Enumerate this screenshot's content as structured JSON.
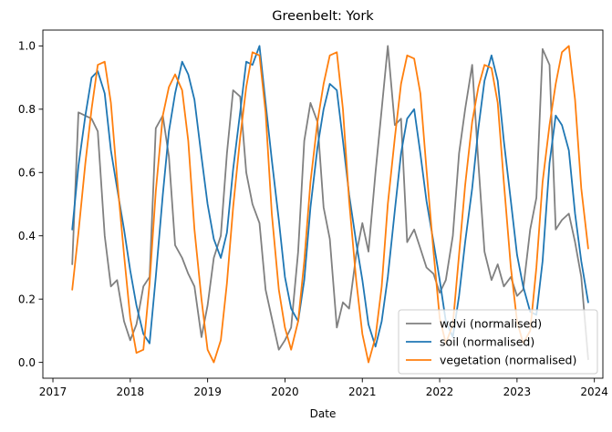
{
  "chart_data": {
    "type": "line",
    "title": "Greenbelt: York",
    "xlabel": "Date",
    "ylabel": "",
    "xlim": [
      2016.87,
      2024.11
    ],
    "ylim": [
      -0.05,
      1.05
    ],
    "xticks": [
      2017,
      2018,
      2019,
      2020,
      2021,
      2022,
      2023,
      2024
    ],
    "xtick_labels": [
      "2017",
      "2018",
      "2019",
      "2020",
      "2021",
      "2022",
      "2023",
      "2024"
    ],
    "yticks": [
      0.0,
      0.2,
      0.4,
      0.6,
      0.8,
      1.0
    ],
    "ytick_labels": [
      "0.0",
      "0.2",
      "0.4",
      "0.6",
      "0.8",
      "1.0"
    ],
    "grid": false,
    "legend_position": "lower-right",
    "series": [
      {
        "name": "wdvi (normalised)",
        "color": "#808080",
        "points": [
          [
            2017.25,
            0.31
          ],
          [
            2017.33,
            0.79
          ],
          [
            2017.5,
            0.77
          ],
          [
            2017.58,
            0.73
          ],
          [
            2017.67,
            0.4
          ],
          [
            2017.75,
            0.24
          ],
          [
            2017.83,
            0.26
          ],
          [
            2017.92,
            0.13
          ],
          [
            2018.0,
            0.07
          ],
          [
            2018.08,
            0.12
          ],
          [
            2018.17,
            0.24
          ],
          [
            2018.25,
            0.27
          ],
          [
            2018.33,
            0.74
          ],
          [
            2018.42,
            0.78
          ],
          [
            2018.5,
            0.65
          ],
          [
            2018.58,
            0.37
          ],
          [
            2018.67,
            0.33
          ],
          [
            2018.75,
            0.28
          ],
          [
            2018.83,
            0.24
          ],
          [
            2018.92,
            0.08
          ],
          [
            2019.0,
            0.18
          ],
          [
            2019.08,
            0.33
          ],
          [
            2019.17,
            0.4
          ],
          [
            2019.25,
            0.66
          ],
          [
            2019.33,
            0.86
          ],
          [
            2019.42,
            0.84
          ],
          [
            2019.5,
            0.6
          ],
          [
            2019.58,
            0.5
          ],
          [
            2019.67,
            0.44
          ],
          [
            2019.75,
            0.23
          ],
          [
            2019.83,
            0.14
          ],
          [
            2019.92,
            0.04
          ],
          [
            2020.0,
            0.07
          ],
          [
            2020.08,
            0.11
          ],
          [
            2020.17,
            0.35
          ],
          [
            2020.25,
            0.7
          ],
          [
            2020.33,
            0.82
          ],
          [
            2020.42,
            0.76
          ],
          [
            2020.5,
            0.49
          ],
          [
            2020.58,
            0.39
          ],
          [
            2020.67,
            0.11
          ],
          [
            2020.75,
            0.19
          ],
          [
            2020.83,
            0.17
          ],
          [
            2020.92,
            0.34
          ],
          [
            2021.0,
            0.44
          ],
          [
            2021.08,
            0.35
          ],
          [
            2021.17,
            0.6
          ],
          [
            2021.25,
            0.8
          ],
          [
            2021.33,
            1.0
          ],
          [
            2021.42,
            0.75
          ],
          [
            2021.5,
            0.77
          ],
          [
            2021.58,
            0.38
          ],
          [
            2021.67,
            0.42
          ],
          [
            2021.75,
            0.36
          ],
          [
            2021.83,
            0.3
          ],
          [
            2021.92,
            0.28
          ],
          [
            2022.0,
            0.22
          ],
          [
            2022.08,
            0.26
          ],
          [
            2022.17,
            0.4
          ],
          [
            2022.25,
            0.66
          ],
          [
            2022.33,
            0.8
          ],
          [
            2022.42,
            0.94
          ],
          [
            2022.5,
            0.63
          ],
          [
            2022.58,
            0.35
          ],
          [
            2022.67,
            0.26
          ],
          [
            2022.75,
            0.31
          ],
          [
            2022.83,
            0.24
          ],
          [
            2022.92,
            0.27
          ],
          [
            2023.0,
            0.21
          ],
          [
            2023.08,
            0.23
          ],
          [
            2023.17,
            0.42
          ],
          [
            2023.25,
            0.52
          ],
          [
            2023.33,
            0.99
          ],
          [
            2023.42,
            0.94
          ],
          [
            2023.5,
            0.42
          ],
          [
            2023.58,
            0.45
          ],
          [
            2023.67,
            0.47
          ],
          [
            2023.75,
            0.38
          ],
          [
            2023.83,
            0.27
          ],
          [
            2023.92,
            0.01
          ]
        ]
      },
      {
        "name": "soil (normalised)",
        "color": "#1f77b4",
        "points": [
          [
            2017.25,
            0.42
          ],
          [
            2017.33,
            0.62
          ],
          [
            2017.42,
            0.78
          ],
          [
            2017.5,
            0.9
          ],
          [
            2017.58,
            0.92
          ],
          [
            2017.67,
            0.85
          ],
          [
            2017.75,
            0.67
          ],
          [
            2017.83,
            0.55
          ],
          [
            2017.92,
            0.42
          ],
          [
            2018.0,
            0.29
          ],
          [
            2018.08,
            0.18
          ],
          [
            2018.17,
            0.09
          ],
          [
            2018.25,
            0.06
          ],
          [
            2018.33,
            0.27
          ],
          [
            2018.42,
            0.53
          ],
          [
            2018.5,
            0.73
          ],
          [
            2018.58,
            0.85
          ],
          [
            2018.67,
            0.95
          ],
          [
            2018.75,
            0.91
          ],
          [
            2018.83,
            0.83
          ],
          [
            2018.92,
            0.65
          ],
          [
            2019.0,
            0.5
          ],
          [
            2019.08,
            0.39
          ],
          [
            2019.17,
            0.33
          ],
          [
            2019.25,
            0.41
          ],
          [
            2019.33,
            0.61
          ],
          [
            2019.42,
            0.79
          ],
          [
            2019.5,
            0.95
          ],
          [
            2019.58,
            0.94
          ],
          [
            2019.67,
            1.0
          ],
          [
            2019.75,
            0.82
          ],
          [
            2019.83,
            0.64
          ],
          [
            2019.92,
            0.45
          ],
          [
            2020.0,
            0.27
          ],
          [
            2020.08,
            0.17
          ],
          [
            2020.17,
            0.13
          ],
          [
            2020.25,
            0.26
          ],
          [
            2020.33,
            0.49
          ],
          [
            2020.42,
            0.68
          ],
          [
            2020.5,
            0.8
          ],
          [
            2020.58,
            0.88
          ],
          [
            2020.67,
            0.86
          ],
          [
            2020.75,
            0.7
          ],
          [
            2020.83,
            0.53
          ],
          [
            2020.92,
            0.38
          ],
          [
            2021.0,
            0.26
          ],
          [
            2021.08,
            0.12
          ],
          [
            2021.17,
            0.05
          ],
          [
            2021.25,
            0.13
          ],
          [
            2021.33,
            0.27
          ],
          [
            2021.42,
            0.48
          ],
          [
            2021.5,
            0.66
          ],
          [
            2021.58,
            0.77
          ],
          [
            2021.67,
            0.8
          ],
          [
            2021.75,
            0.66
          ],
          [
            2021.83,
            0.51
          ],
          [
            2021.92,
            0.38
          ],
          [
            2022.0,
            0.26
          ],
          [
            2022.08,
            0.13
          ],
          [
            2022.17,
            0.08
          ],
          [
            2022.25,
            0.21
          ],
          [
            2022.33,
            0.38
          ],
          [
            2022.42,
            0.55
          ],
          [
            2022.5,
            0.74
          ],
          [
            2022.58,
            0.89
          ],
          [
            2022.67,
            0.97
          ],
          [
            2022.75,
            0.89
          ],
          [
            2022.83,
            0.7
          ],
          [
            2022.92,
            0.51
          ],
          [
            2023.0,
            0.34
          ],
          [
            2023.08,
            0.24
          ],
          [
            2023.17,
            0.16
          ],
          [
            2023.25,
            0.15
          ],
          [
            2023.33,
            0.32
          ],
          [
            2023.42,
            0.63
          ],
          [
            2023.5,
            0.78
          ],
          [
            2023.58,
            0.75
          ],
          [
            2023.67,
            0.67
          ],
          [
            2023.75,
            0.47
          ],
          [
            2023.83,
            0.32
          ],
          [
            2023.92,
            0.19
          ]
        ]
      },
      {
        "name": "vegetation (normalised)",
        "color": "#ff7f0e",
        "points": [
          [
            2017.25,
            0.23
          ],
          [
            2017.33,
            0.41
          ],
          [
            2017.42,
            0.63
          ],
          [
            2017.5,
            0.8
          ],
          [
            2017.58,
            0.94
          ],
          [
            2017.67,
            0.95
          ],
          [
            2017.75,
            0.82
          ],
          [
            2017.83,
            0.58
          ],
          [
            2017.92,
            0.34
          ],
          [
            2018.0,
            0.14
          ],
          [
            2018.08,
            0.03
          ],
          [
            2018.17,
            0.04
          ],
          [
            2018.25,
            0.25
          ],
          [
            2018.33,
            0.54
          ],
          [
            2018.42,
            0.78
          ],
          [
            2018.5,
            0.87
          ],
          [
            2018.58,
            0.91
          ],
          [
            2018.67,
            0.86
          ],
          [
            2018.75,
            0.7
          ],
          [
            2018.83,
            0.42
          ],
          [
            2018.92,
            0.2
          ],
          [
            2019.0,
            0.04
          ],
          [
            2019.08,
            0.0
          ],
          [
            2019.17,
            0.07
          ],
          [
            2019.25,
            0.25
          ],
          [
            2019.33,
            0.49
          ],
          [
            2019.42,
            0.71
          ],
          [
            2019.5,
            0.87
          ],
          [
            2019.58,
            0.98
          ],
          [
            2019.67,
            0.97
          ],
          [
            2019.75,
            0.79
          ],
          [
            2019.83,
            0.47
          ],
          [
            2019.92,
            0.23
          ],
          [
            2020.0,
            0.11
          ],
          [
            2020.08,
            0.04
          ],
          [
            2020.17,
            0.13
          ],
          [
            2020.25,
            0.32
          ],
          [
            2020.33,
            0.57
          ],
          [
            2020.42,
            0.76
          ],
          [
            2020.5,
            0.88
          ],
          [
            2020.58,
            0.97
          ],
          [
            2020.67,
            0.98
          ],
          [
            2020.75,
            0.8
          ],
          [
            2020.83,
            0.51
          ],
          [
            2020.92,
            0.26
          ],
          [
            2021.0,
            0.09
          ],
          [
            2021.08,
            0.0
          ],
          [
            2021.17,
            0.08
          ],
          [
            2021.25,
            0.24
          ],
          [
            2021.33,
            0.5
          ],
          [
            2021.42,
            0.71
          ],
          [
            2021.5,
            0.88
          ],
          [
            2021.58,
            0.97
          ],
          [
            2021.67,
            0.96
          ],
          [
            2021.75,
            0.85
          ],
          [
            2021.83,
            0.61
          ],
          [
            2021.92,
            0.35
          ],
          [
            2022.0,
            0.14
          ],
          [
            2022.08,
            0.06
          ],
          [
            2022.17,
            0.12
          ],
          [
            2022.25,
            0.34
          ],
          [
            2022.33,
            0.56
          ],
          [
            2022.42,
            0.76
          ],
          [
            2022.5,
            0.87
          ],
          [
            2022.58,
            0.94
          ],
          [
            2022.67,
            0.93
          ],
          [
            2022.75,
            0.82
          ],
          [
            2022.83,
            0.57
          ],
          [
            2022.92,
            0.3
          ],
          [
            2023.0,
            0.13
          ],
          [
            2023.08,
            0.06
          ],
          [
            2023.17,
            0.1
          ],
          [
            2023.25,
            0.3
          ],
          [
            2023.33,
            0.57
          ],
          [
            2023.42,
            0.75
          ],
          [
            2023.5,
            0.88
          ],
          [
            2023.58,
            0.98
          ],
          [
            2023.67,
            1.0
          ],
          [
            2023.75,
            0.83
          ],
          [
            2023.83,
            0.55
          ],
          [
            2023.92,
            0.36
          ]
        ]
      }
    ]
  }
}
